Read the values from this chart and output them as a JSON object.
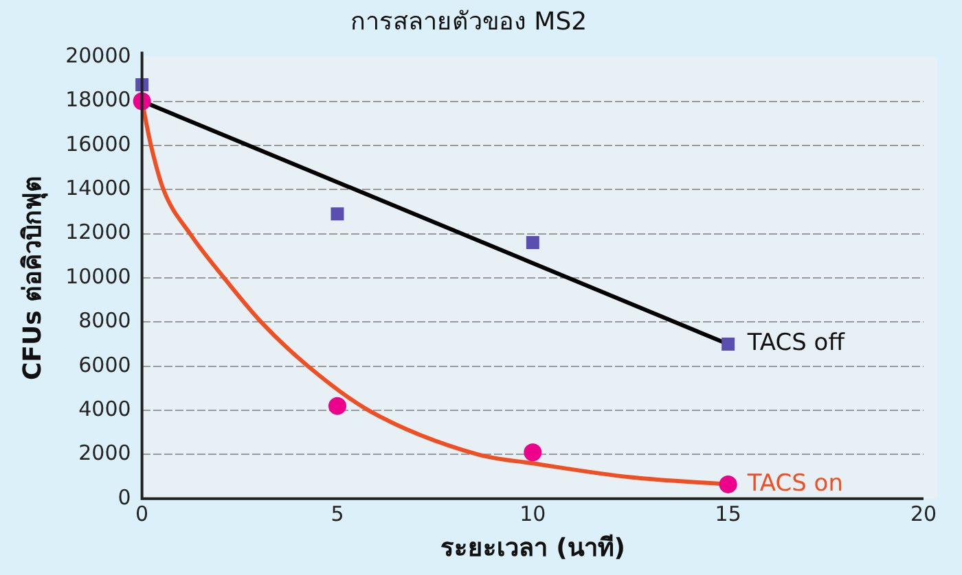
{
  "chart_data": {
    "type": "scatter",
    "title": "การสลายตัวของ MS2",
    "xlabel": "ระยะเวลา (นาที)",
    "ylabel": "CFUs ต่อคิวบิกฟุต",
    "xlim": [
      0,
      20
    ],
    "xticks": [
      0,
      5,
      10,
      15,
      20
    ],
    "ylim": [
      0,
      20000
    ],
    "yticks": [
      0,
      2000,
      4000,
      6000,
      8000,
      10000,
      12000,
      14000,
      16000,
      18000,
      20000
    ],
    "grid": "y",
    "legend": false,
    "series": [
      {
        "type": "line",
        "color": "#000000",
        "marker": "none",
        "x": [
          0,
          15
        ],
        "values": [
          18000,
          7000
        ]
      },
      {
        "type": "line",
        "color": "#f04e23",
        "marker": "none",
        "x": [
          0,
          0.23,
          0.55,
          1.23,
          2.1,
          3.05,
          4.25,
          5.8,
          8.6,
          10,
          12.5,
          15
        ],
        "values": [
          18000,
          16000,
          14000,
          12000,
          10000,
          8000,
          6000,
          4000,
          2000,
          1600,
          970,
          650
        ]
      },
      {
        "name": "TACS off",
        "color": "#5a4fb0",
        "marker": "square",
        "x": [
          0,
          5,
          10,
          15
        ],
        "values": [
          18750,
          12900,
          11600,
          7000
        ]
      },
      {
        "name": "TACS on",
        "color": "#ec008c",
        "marker": "circle",
        "x": [
          0,
          5,
          10,
          15
        ],
        "values": [
          18000,
          4200,
          2100,
          650
        ]
      }
    ]
  }
}
